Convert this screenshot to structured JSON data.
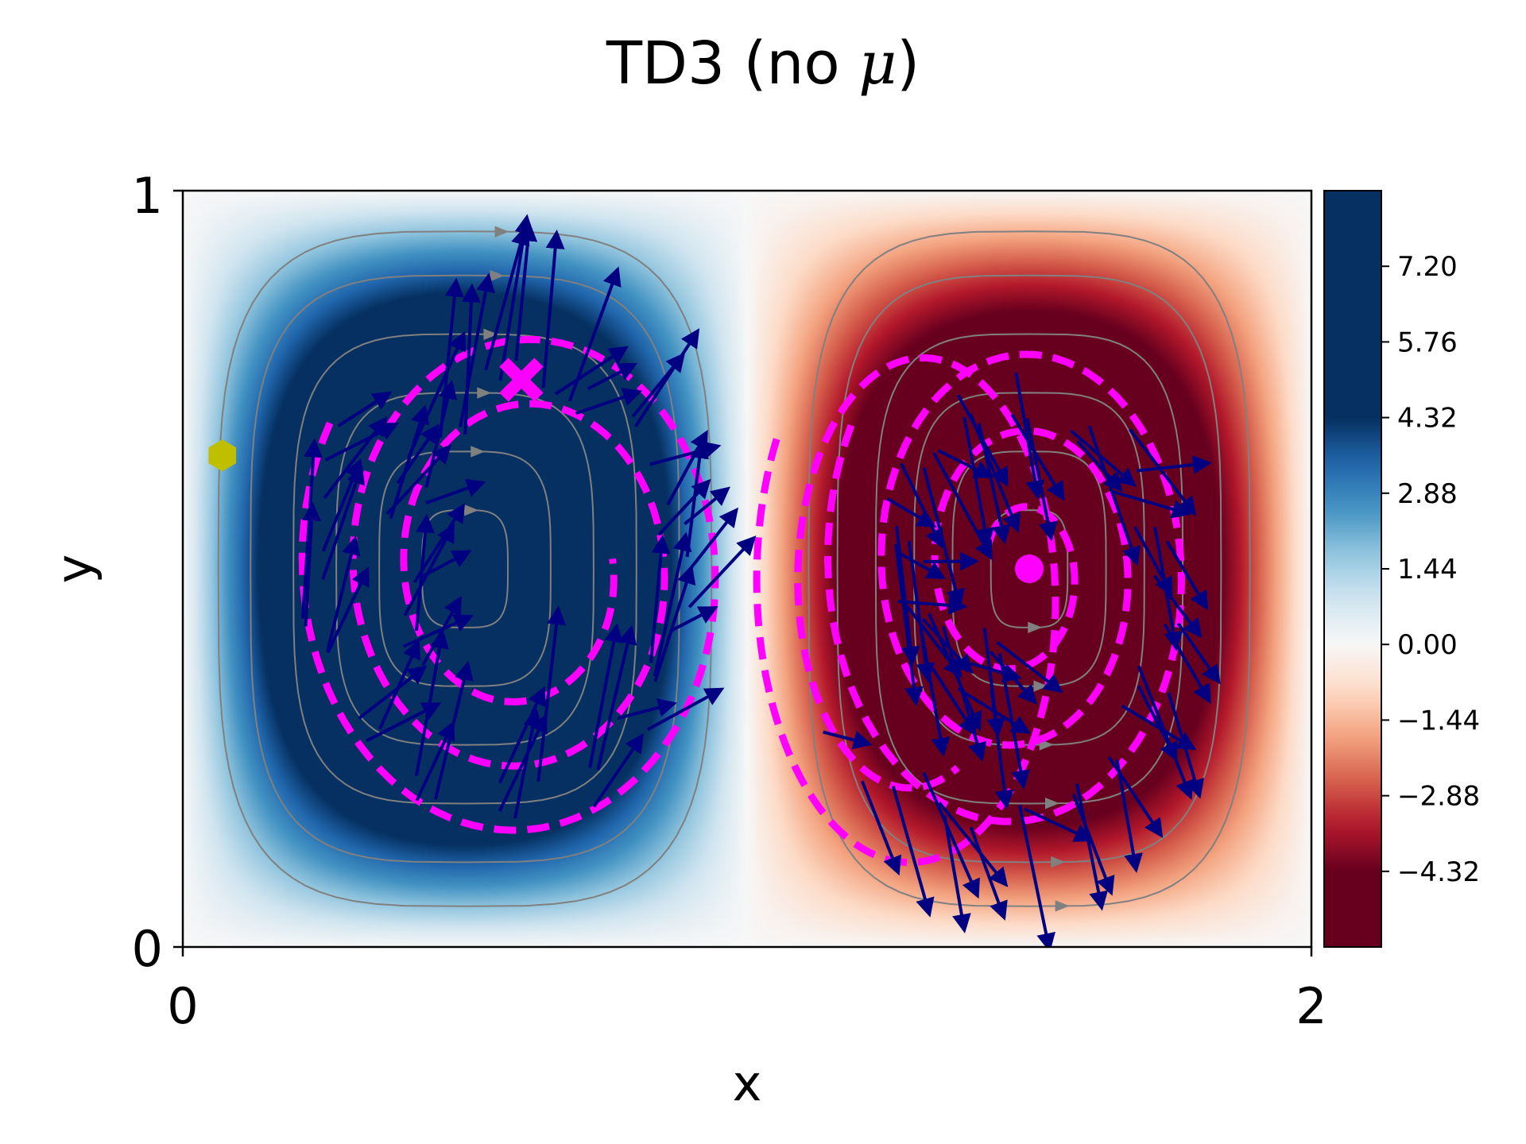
{
  "chart_data": {
    "type": "heatmap",
    "title": "TD3 (no μ)",
    "title_text": "TD3 (no ",
    "title_symbol": "μ",
    "title_close": ")",
    "xlabel": "x",
    "ylabel": "y",
    "xlim": [
      0,
      2
    ],
    "ylim": [
      0,
      1
    ],
    "x_ticks": [
      "0",
      "2"
    ],
    "y_ticks": [
      "0",
      "1"
    ],
    "field": "double-gyre vorticity (negative left cell, positive right cell)",
    "colormap": "RdBu",
    "colorbar": {
      "ticks": [
        "−4.32",
        "−2.88",
        "−1.44",
        "0.00",
        "1.44",
        "2.88",
        "4.32",
        "5.76",
        "7.20"
      ],
      "tick_values": [
        -4.32,
        -2.88,
        -1.44,
        0.0,
        1.44,
        2.88,
        4.32,
        5.76,
        7.2
      ],
      "range": [
        -5.76,
        8.64
      ]
    },
    "markers": {
      "start": {
        "shape": "hexagon",
        "color": "#bfbf00",
        "x": 0.07,
        "y": 0.65
      },
      "target": {
        "shape": "x",
        "color": "#ff00ff",
        "x": 0.6,
        "y": 0.75
      },
      "end": {
        "shape": "circle",
        "color": "#ff00ff",
        "x": 1.5,
        "y": 0.5
      }
    },
    "colors": {
      "streamlines": "#808080",
      "trajectory": "#ff00ff",
      "actions": "#000080",
      "negative": "#67001f",
      "positive": "#053061"
    }
  }
}
